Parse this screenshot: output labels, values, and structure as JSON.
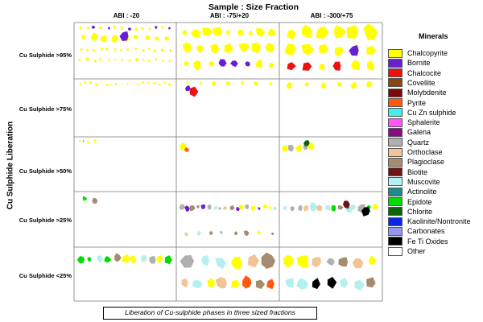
{
  "title": "Sample : Size Fraction",
  "columns": [
    "ABI : -20",
    "ABI : -75/+20",
    "ABI : -300/+75"
  ],
  "y_axis_title": "Cu Sulphide Liberation",
  "rows": [
    "Cu Sulphide >95%",
    "Cu Sulphide >75%",
    "Cu Sulphide >50%",
    "Cu Sulphide >25%",
    "Cu Sulphide <25%"
  ],
  "legend": {
    "title": "Minerals",
    "items": [
      {
        "label": "Chalcopyrite",
        "color": "#ffff00"
      },
      {
        "label": "Bornite",
        "color": "#6a1fcf"
      },
      {
        "label": "Chalcocite",
        "color": "#ee1111"
      },
      {
        "label": "Covellite",
        "color": "#8b4513"
      },
      {
        "label": "Molybdenite",
        "color": "#7a0a0a"
      },
      {
        "label": "Pyrite",
        "color": "#ff5a0a"
      },
      {
        "label": "Cu Zn sulphide",
        "color": "#44eeee"
      },
      {
        "label": "Sphalerite",
        "color": "#ff55ff"
      },
      {
        "label": "Galena",
        "color": "#8a0a8a"
      },
      {
        "label": "Quartz",
        "color": "#b0b0b0"
      },
      {
        "label": "Orthoclase",
        "color": "#f2c496"
      },
      {
        "label": "Plagioclase",
        "color": "#a58c6e"
      },
      {
        "label": "Biotite",
        "color": "#6e1414"
      },
      {
        "label": "Muscovite",
        "color": "#b4f0f0"
      },
      {
        "label": "Actinolite",
        "color": "#1e8c8c"
      },
      {
        "label": "Epidote",
        "color": "#00dd00"
      },
      {
        "label": "Chlorite",
        "color": "#0a640a"
      },
      {
        "label": "Kaolinite/Nontronite",
        "color": "#0a28e6"
      },
      {
        "label": "Carbonates",
        "color": "#9696f0"
      },
      {
        "label": "Fe Ti Oxides",
        "color": "#000000"
      },
      {
        "label": "Other",
        "color": "#ffffff"
      }
    ]
  },
  "caption": "Liberation of Cu-sulphide phases in three sized fractions"
}
